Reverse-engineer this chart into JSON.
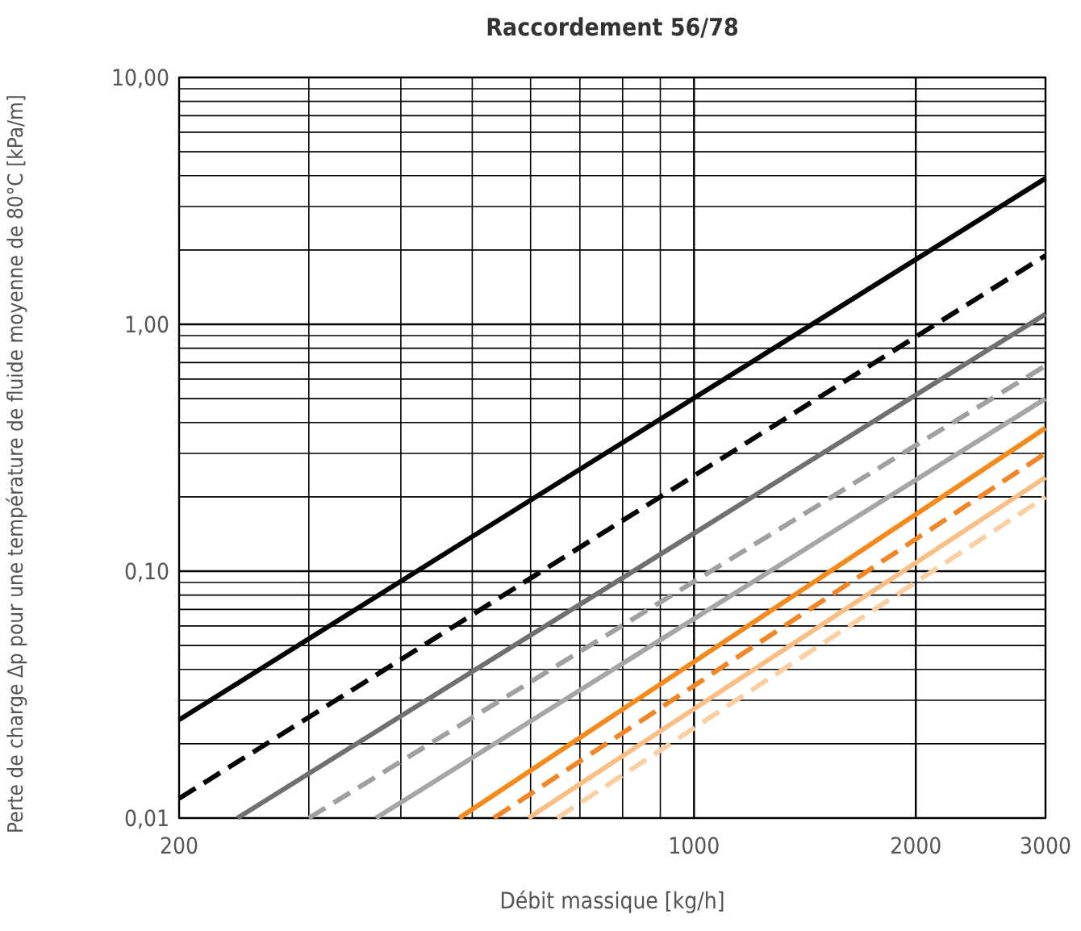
{
  "chart_data": {
    "type": "line",
    "title": "Raccordement 56/78",
    "xlabel": "Débit massique [kg/h]",
    "ylabel": "Perte de charge Δp pour une température de fluide moyenne de 80°C [kPa/m]",
    "log": "xy",
    "grid": true,
    "marker": "none",
    "xlim": [
      200,
      3000
    ],
    "ylim": [
      0.01,
      10
    ],
    "xticks": [
      200,
      {
        "value": 300,
        "label": null
      },
      {
        "value": 400,
        "label": null
      },
      {
        "value": 500,
        "label": null
      },
      {
        "value": 600,
        "label": null
      },
      {
        "value": 700,
        "label": null
      },
      {
        "value": 800,
        "label": null
      },
      {
        "value": 900,
        "label": null
      },
      1000,
      2000,
      3000
    ],
    "yticks": [
      {
        "value": 0.01,
        "label": "0,01"
      },
      {
        "value": 0.02,
        "label": null
      },
      {
        "value": 0.03,
        "label": null
      },
      {
        "value": 0.04,
        "label": null
      },
      {
        "value": 0.05,
        "label": null
      },
      {
        "value": 0.06,
        "label": null
      },
      {
        "value": 0.07,
        "label": null
      },
      {
        "value": 0.08,
        "label": null
      },
      {
        "value": 0.09,
        "label": null
      },
      {
        "value": 0.1,
        "label": "0,10"
      },
      {
        "value": 0.2,
        "label": null
      },
      {
        "value": 0.3,
        "label": null
      },
      {
        "value": 0.4,
        "label": null
      },
      {
        "value": 0.5,
        "label": null
      },
      {
        "value": 0.6,
        "label": null
      },
      {
        "value": 0.7,
        "label": null
      },
      {
        "value": 0.8,
        "label": null
      },
      {
        "value": 0.9,
        "label": null
      },
      {
        "value": 1,
        "label": "1,00"
      },
      {
        "value": 2,
        "label": null
      },
      {
        "value": 3,
        "label": null
      },
      {
        "value": 4,
        "label": null
      },
      {
        "value": 5,
        "label": null
      },
      {
        "value": 6,
        "label": null
      },
      {
        "value": 7,
        "label": null
      },
      {
        "value": 8,
        "label": null
      },
      {
        "value": 9,
        "label": null
      },
      {
        "value": 10,
        "label": "10,00"
      }
    ],
    "series": [
      {
        "color": "#000000",
        "line_style": "solid",
        "x": [
          200,
          3000
        ],
        "values": [
          0.025,
          3.9
        ]
      },
      {
        "color": "#000000",
        "line_style": "dashed",
        "x": [
          200,
          3000
        ],
        "values": [
          0.012,
          1.9
        ]
      },
      {
        "color": "#707070",
        "line_style": "solid",
        "x": [
          240,
          3000
        ],
        "values": [
          0.01,
          1.1
        ]
      },
      {
        "color": "#a0a0a0",
        "line_style": "dashed",
        "x": [
          300,
          3000
        ],
        "values": [
          0.01,
          0.68
        ]
      },
      {
        "color": "#a6a6a6",
        "line_style": "solid",
        "x": [
          370,
          3000
        ],
        "values": [
          0.01,
          0.5
        ]
      },
      {
        "color": "#f28a1e",
        "line_style": "solid",
        "x": [
          480,
          3000
        ],
        "values": [
          0.01,
          0.38
        ]
      },
      {
        "color": "#f0862a",
        "line_style": "dashed",
        "x": [
          535,
          3000
        ],
        "values": [
          0.01,
          0.3
        ]
      },
      {
        "color": "#f9bf86",
        "line_style": "solid",
        "x": [
          596,
          3000
        ],
        "values": [
          0.01,
          0.24
        ]
      },
      {
        "color": "#fbcfa4",
        "line_style": "dashed",
        "x": [
          652,
          3000
        ],
        "values": [
          0.01,
          0.2
        ]
      }
    ]
  }
}
